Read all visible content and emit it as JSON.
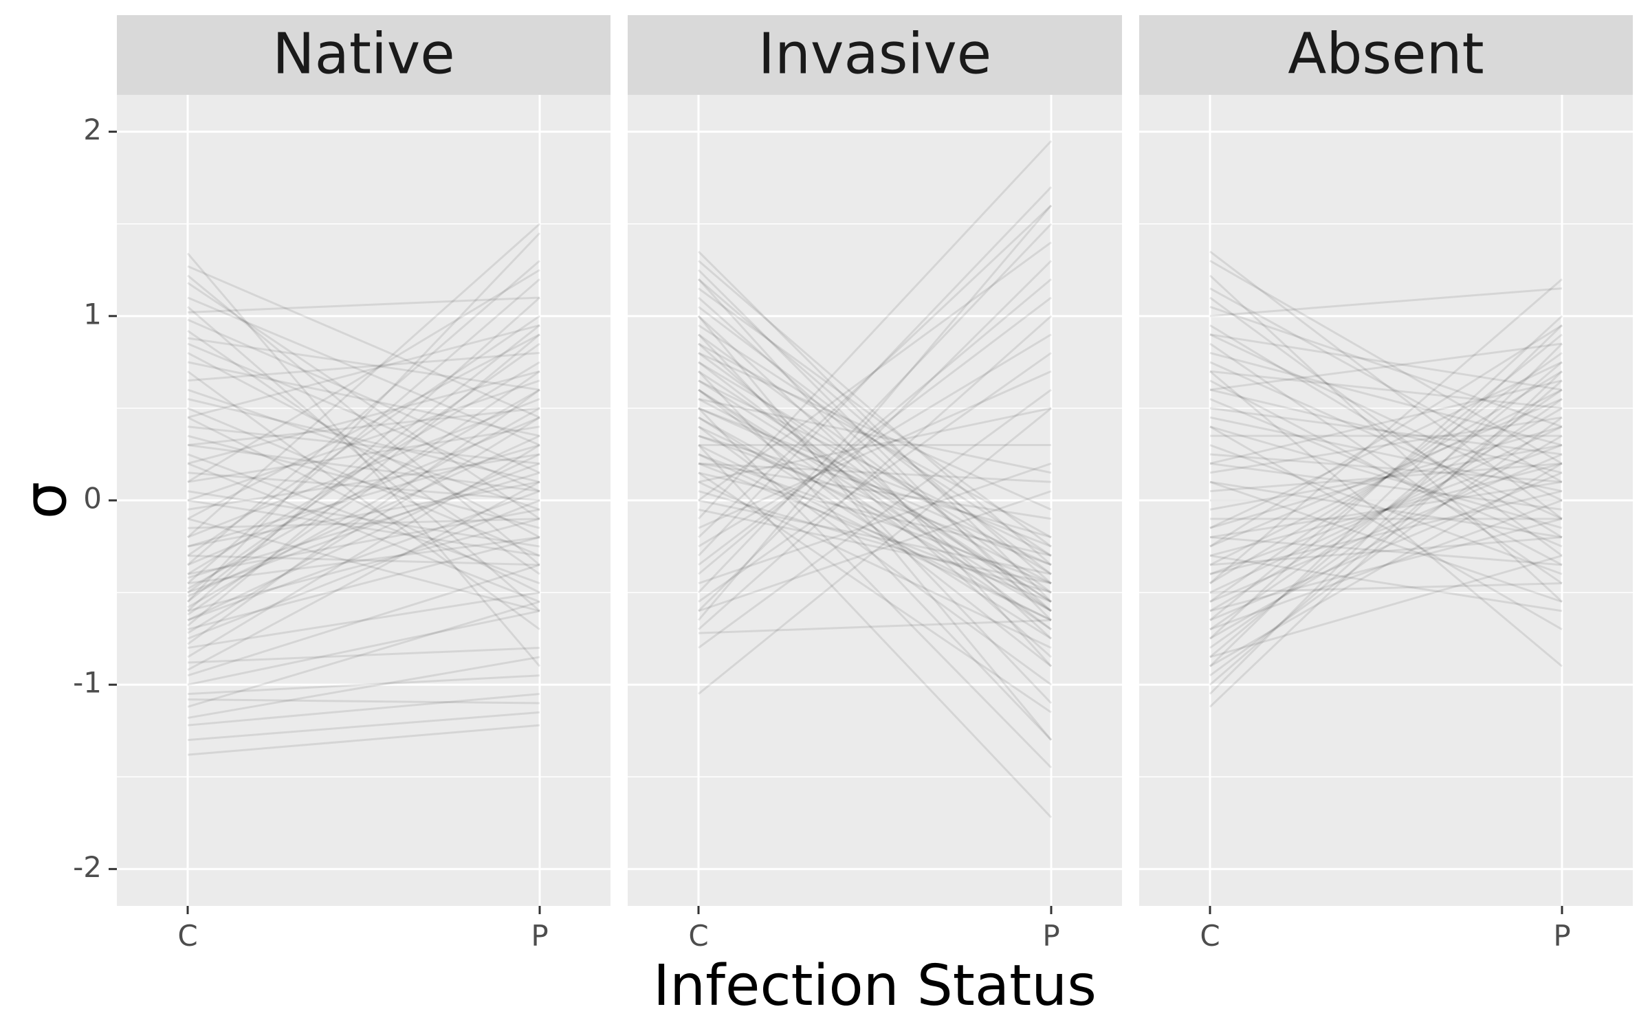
{
  "chart_data": {
    "type": "line",
    "xlabel": "Infection Status",
    "ylabel": "σ",
    "categories": [
      "C",
      "P"
    ],
    "ylim": [
      -2.2,
      2.2
    ],
    "yticks": [
      -2,
      -1,
      0,
      1,
      2
    ],
    "ytick_labels": [
      "-2",
      "-1",
      "0",
      "1",
      "2"
    ],
    "grid": true,
    "line_color": "#000000",
    "line_opacity": 0.09,
    "background_color": "#ebebeb",
    "strip_color": "#d9d9d9",
    "panels": [
      {
        "label": "Native",
        "series": [
          [
            1.34,
            -0.9
          ],
          [
            1.27,
            0.45
          ],
          [
            1.22,
            -0.35
          ],
          [
            1.18,
            -0.1
          ],
          [
            1.1,
            0.3
          ],
          [
            1.05,
            -0.6
          ],
          [
            1.02,
            1.1
          ],
          [
            0.98,
            0.15
          ],
          [
            0.92,
            -0.4
          ],
          [
            0.88,
            0.6
          ],
          [
            0.85,
            0.05
          ],
          [
            0.8,
            -0.2
          ],
          [
            0.75,
            0.35
          ],
          [
            0.7,
            -0.7
          ],
          [
            0.65,
            0.8
          ],
          [
            0.6,
            -0.05
          ],
          [
            0.55,
            0.1
          ],
          [
            0.5,
            -0.3
          ],
          [
            0.45,
            0.95
          ],
          [
            0.4,
            0.2
          ],
          [
            0.35,
            -0.15
          ],
          [
            0.3,
            0.5
          ],
          [
            0.25,
            -0.45
          ],
          [
            0.2,
            0.7
          ],
          [
            0.15,
            0.0
          ],
          [
            0.1,
            0.4
          ],
          [
            0.05,
            -0.25
          ],
          [
            0.0,
            0.65
          ],
          [
            -0.05,
            0.25
          ],
          [
            -0.1,
            0.9
          ],
          [
            -0.15,
            -0.1
          ],
          [
            -0.2,
            0.55
          ],
          [
            -0.25,
            0.3
          ],
          [
            -0.3,
            1.0
          ],
          [
            -0.35,
            0.45
          ],
          [
            -0.4,
            0.75
          ],
          [
            -0.42,
            0.15
          ],
          [
            -0.45,
            1.2
          ],
          [
            -0.48,
            0.6
          ],
          [
            -0.5,
            0.85
          ],
          [
            -0.52,
            0.35
          ],
          [
            -0.55,
            0.95
          ],
          [
            -0.58,
            0.5
          ],
          [
            -0.6,
            1.1
          ],
          [
            -0.62,
            0.7
          ],
          [
            -0.65,
            0.25
          ],
          [
            -0.68,
            0.9
          ],
          [
            -0.7,
            -0.2
          ],
          [
            -0.72,
            0.45
          ],
          [
            -0.75,
            0.0
          ],
          [
            -0.78,
            0.6
          ],
          [
            -0.8,
            -0.5
          ],
          [
            -0.85,
            0.3
          ],
          [
            -0.88,
            -0.8
          ],
          [
            -0.92,
            0.1
          ],
          [
            -0.95,
            -0.35
          ],
          [
            -1.0,
            -0.6
          ],
          [
            -1.05,
            -0.95
          ],
          [
            -1.08,
            -1.1
          ],
          [
            -1.12,
            -0.55
          ],
          [
            -1.18,
            -0.85
          ],
          [
            -1.22,
            -1.05
          ],
          [
            -1.3,
            -1.15
          ],
          [
            -1.38,
            -1.22
          ],
          [
            -0.3,
            -0.35
          ],
          [
            -0.45,
            -0.2
          ],
          [
            -0.6,
            -0.1
          ],
          [
            0.2,
            -0.55
          ],
          [
            -0.1,
            -0.6
          ],
          [
            0.45,
            -0.5
          ],
          [
            -0.35,
            1.3
          ],
          [
            -0.55,
            1.45
          ],
          [
            -0.2,
            1.5
          ],
          [
            0.1,
            1.25
          ],
          [
            -0.65,
            0.05
          ],
          [
            -0.4,
            -0.05
          ],
          [
            0.0,
            -0.3
          ],
          [
            -0.25,
            0.1
          ],
          [
            -0.5,
            0.2
          ],
          [
            0.3,
            0.05
          ]
        ]
      },
      {
        "label": "Invasive",
        "series": [
          [
            1.35,
            -0.55
          ],
          [
            1.3,
            -0.35
          ],
          [
            1.25,
            -0.65
          ],
          [
            1.2,
            -0.45
          ],
          [
            1.15,
            -0.25
          ],
          [
            1.1,
            -0.6
          ],
          [
            1.05,
            -0.4
          ],
          [
            1.0,
            -0.75
          ],
          [
            0.95,
            -0.3
          ],
          [
            0.9,
            -0.5
          ],
          [
            0.85,
            -0.2
          ],
          [
            0.8,
            -0.6
          ],
          [
            0.75,
            -0.4
          ],
          [
            0.7,
            -0.55
          ],
          [
            0.65,
            -0.3
          ],
          [
            0.6,
            -0.7
          ],
          [
            0.55,
            -0.45
          ],
          [
            0.5,
            -0.25
          ],
          [
            0.45,
            -0.6
          ],
          [
            0.4,
            -0.5
          ],
          [
            0.35,
            -0.35
          ],
          [
            0.3,
            -0.65
          ],
          [
            0.25,
            -0.45
          ],
          [
            0.2,
            -0.55
          ],
          [
            0.15,
            -0.3
          ],
          [
            0.1,
            -0.8
          ],
          [
            0.05,
            -0.5
          ],
          [
            0.0,
            -0.4
          ],
          [
            0.9,
            -1.1
          ],
          [
            0.7,
            -1.3
          ],
          [
            0.5,
            -1.45
          ],
          [
            0.3,
            -1.72
          ],
          [
            0.6,
            -0.9
          ],
          [
            0.4,
            -1.0
          ],
          [
            0.8,
            -0.05
          ],
          [
            0.2,
            0.1
          ],
          [
            -0.1,
            1.95
          ],
          [
            -0.3,
            1.7
          ],
          [
            -0.5,
            1.5
          ],
          [
            -0.6,
            1.3
          ],
          [
            -0.2,
            1.6
          ],
          [
            0.0,
            1.4
          ],
          [
            -0.4,
            1.2
          ],
          [
            -0.7,
            1.0
          ],
          [
            -0.55,
            0.8
          ],
          [
            -0.25,
            0.9
          ],
          [
            -0.8,
            0.6
          ],
          [
            -1.05,
            0.5
          ],
          [
            -0.65,
            1.6
          ],
          [
            -0.35,
            1.1
          ],
          [
            -0.15,
            0.7
          ],
          [
            0.1,
            0.5
          ],
          [
            0.3,
            0.3
          ],
          [
            -0.45,
            0.2
          ],
          [
            -0.72,
            -0.65
          ],
          [
            -0.6,
            0.05
          ],
          [
            0.2,
            -0.1
          ],
          [
            0.55,
            0.15
          ],
          [
            1.0,
            -1.3
          ],
          [
            0.15,
            -1.15
          ],
          [
            0.6,
            -0.6
          ],
          [
            0.45,
            -0.75
          ],
          [
            0.85,
            -0.85
          ],
          [
            0.35,
            -0.2
          ],
          [
            0.75,
            -0.7
          ],
          [
            1.2,
            -0.9
          ],
          [
            0.5,
            -0.35
          ],
          [
            0.65,
            -0.55
          ],
          [
            0.25,
            -0.65
          ],
          [
            -0.05,
            -0.45
          ]
        ]
      },
      {
        "label": "Absent",
        "series": [
          [
            1.35,
            -0.1
          ],
          [
            1.3,
            0.2
          ],
          [
            1.22,
            -0.55
          ],
          [
            1.15,
            0.1
          ],
          [
            1.1,
            -0.3
          ],
          [
            1.05,
            0.4
          ],
          [
            1.0,
            1.15
          ],
          [
            0.95,
            -0.2
          ],
          [
            0.9,
            0.0
          ],
          [
            0.85,
            -0.45
          ],
          [
            0.8,
            0.3
          ],
          [
            0.75,
            -0.1
          ],
          [
            0.7,
            0.5
          ],
          [
            0.65,
            -0.35
          ],
          [
            0.6,
            0.15
          ],
          [
            0.55,
            -0.25
          ],
          [
            0.5,
            0.25
          ],
          [
            0.45,
            0.05
          ],
          [
            0.4,
            -0.15
          ],
          [
            0.35,
            0.35
          ],
          [
            0.3,
            -0.4
          ],
          [
            0.25,
            0.1
          ],
          [
            0.2,
            -0.05
          ],
          [
            0.15,
            0.45
          ],
          [
            0.1,
            -0.2
          ],
          [
            0.05,
            0.2
          ],
          [
            0.0,
            0.0
          ],
          [
            -0.05,
            0.3
          ],
          [
            -0.1,
            -0.1
          ],
          [
            -0.15,
            0.4
          ],
          [
            -0.2,
            0.1
          ],
          [
            -0.25,
            0.55
          ],
          [
            -0.3,
            0.2
          ],
          [
            -0.35,
            0.6
          ],
          [
            -0.4,
            0.3
          ],
          [
            -0.45,
            0.7
          ],
          [
            -0.5,
            0.4
          ],
          [
            -0.55,
            0.8
          ],
          [
            -0.6,
            0.5
          ],
          [
            -0.65,
            0.9
          ],
          [
            -0.7,
            0.6
          ],
          [
            -0.75,
            1.0
          ],
          [
            -0.8,
            0.55
          ],
          [
            -0.85,
            0.75
          ],
          [
            -0.9,
            0.95
          ],
          [
            -0.95,
            0.45
          ],
          [
            -1.0,
            0.65
          ],
          [
            -1.05,
            0.85
          ],
          [
            -1.12,
            0.7
          ],
          [
            -0.5,
            -0.45
          ],
          [
            -0.3,
            -0.6
          ],
          [
            -0.7,
            0.0
          ],
          [
            -0.85,
            -0.3
          ],
          [
            -0.6,
            -0.1
          ],
          [
            -0.4,
            0.05
          ],
          [
            -0.2,
            -0.35
          ],
          [
            0.1,
            -0.55
          ],
          [
            0.4,
            -0.7
          ],
          [
            0.7,
            -0.9
          ],
          [
            -0.45,
            1.2
          ],
          [
            -0.25,
            0.95
          ],
          [
            -0.55,
            0.25
          ],
          [
            -0.65,
            0.15
          ],
          [
            -0.35,
            -0.2
          ],
          [
            -0.75,
            0.35
          ],
          [
            -0.9,
            0.2
          ],
          [
            0.6,
            0.85
          ],
          [
            0.9,
            0.6
          ],
          [
            -0.15,
            0.75
          ],
          [
            0.2,
            0.65
          ]
        ]
      }
    ]
  }
}
